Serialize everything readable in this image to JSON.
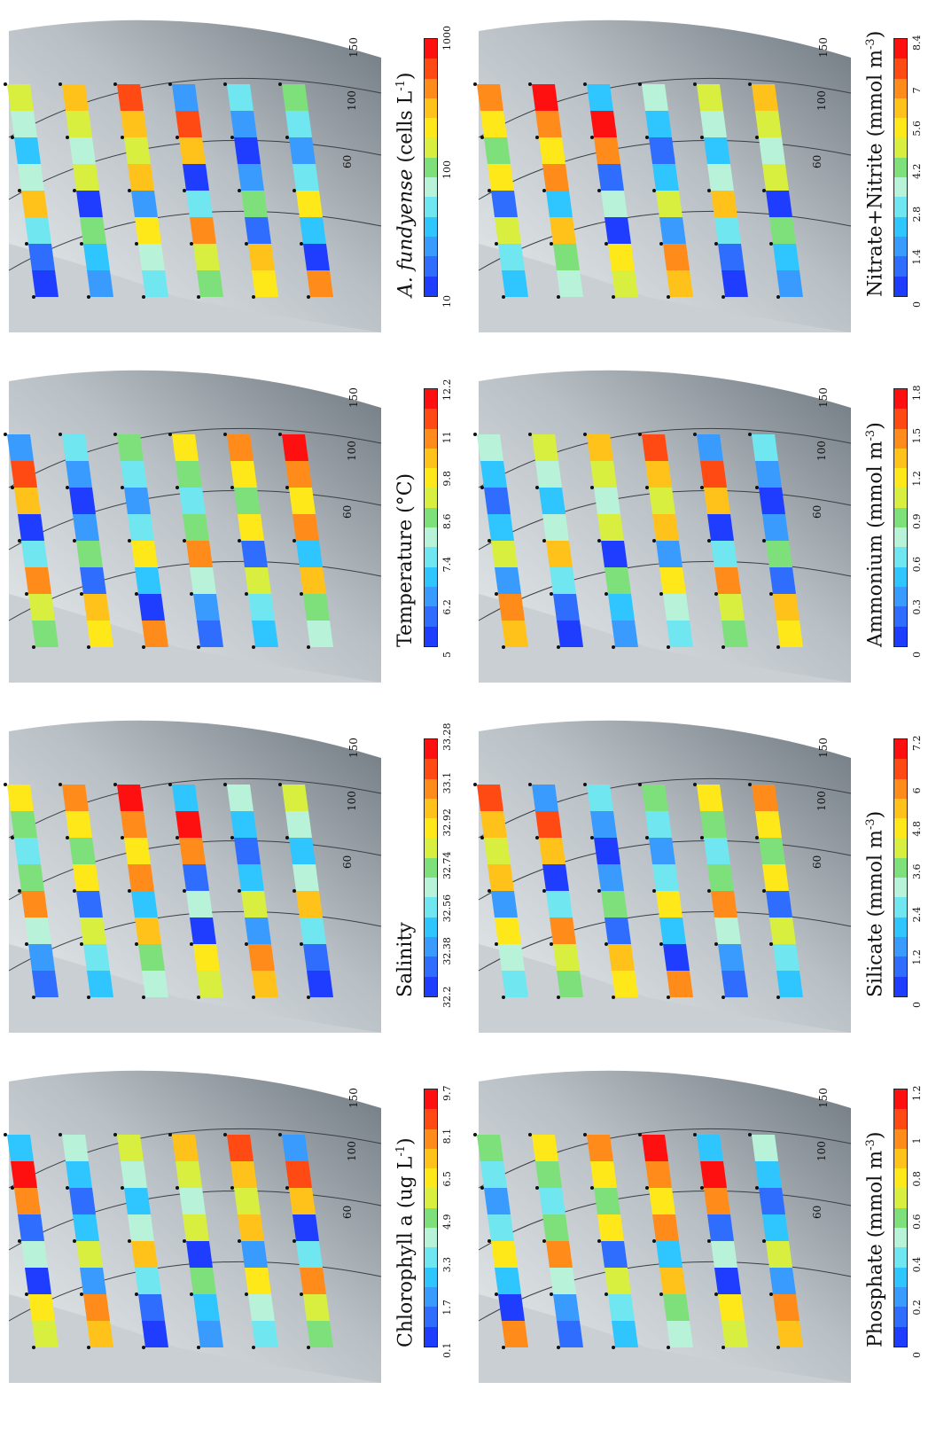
{
  "colorbar": [
    "#1f3dff",
    "#2f6dff",
    "#3a9bff",
    "#2fc5ff",
    "#6fe6f0",
    "#b8f2d8",
    "#7ee07a",
    "#d8ef40",
    "#ffe81a",
    "#ffc21a",
    "#ff8c1a",
    "#ff4a14",
    "#ff1010"
  ],
  "colors": {
    "land": "#c9cfd3",
    "shelf_light": "#e8ecee",
    "deep": "#6f7880",
    "contour": "#3a3f44",
    "station": "#111111"
  },
  "panels": [
    {
      "id": "a-fundyense",
      "title_italic": "A. fundyense",
      "title_rest": " (cells L",
      "title_sup": "-1",
      "title_end": ")",
      "ticks": [
        "10",
        "100",
        "1000"
      ],
      "depths": [
        "60",
        "100",
        "150"
      ]
    },
    {
      "id": "nitrate",
      "title": "Nitrate+Nitrite (mmol m",
      "title_sup": "-3",
      "title_end": ")",
      "ticks": [
        "0",
        "1.4",
        "2.8",
        "4.2",
        "5.6",
        "7",
        "8.4"
      ],
      "depths": [
        "60",
        "100",
        "150"
      ]
    },
    {
      "id": "temperature",
      "title": "Temperature (°C)",
      "ticks": [
        "5",
        "6.2",
        "7.4",
        "8.6",
        "9.8",
        "11",
        "12.2"
      ],
      "depths": [
        "60",
        "100",
        "150"
      ]
    },
    {
      "id": "ammonium",
      "title": "Ammonium (mmol m",
      "title_sup": "-3",
      "title_end": ")",
      "ticks": [
        "0",
        "0.3",
        "0.6",
        "0.9",
        "1.2",
        "1.5",
        "1.8"
      ],
      "depths": [
        "60",
        "100",
        "150"
      ]
    },
    {
      "id": "salinity",
      "title": "Salinity",
      "ticks": [
        "32.2",
        "32.38",
        "32.56",
        "32.74",
        "32.92",
        "33.1",
        "33.28"
      ],
      "depths": [
        "60",
        "100",
        "150"
      ]
    },
    {
      "id": "silicate",
      "title": "Silicate (mmol m",
      "title_sup": "-3",
      "title_end": ")",
      "ticks": [
        "0",
        "1.2",
        "2.4",
        "3.6",
        "4.8",
        "6",
        "7.2"
      ],
      "depths": [
        "60",
        "100",
        "150"
      ]
    },
    {
      "id": "chlorophyll",
      "title": "Chlorophyll a (ug L",
      "title_sup": "-1",
      "title_end": ")",
      "ticks": [
        "0.1",
        "1.7",
        "3.3",
        "4.9",
        "6.5",
        "8.1",
        "9.7"
      ],
      "depths": [
        "60",
        "100",
        "150"
      ]
    },
    {
      "id": "phosphate",
      "title": "Phosphate (mmol m",
      "title_sup": "-3",
      "title_end": ")",
      "ticks": [
        "0",
        "0.2",
        "0.4",
        "0.6",
        "0.8",
        "1",
        "1.2"
      ],
      "depths": [
        "60",
        "100",
        "150"
      ]
    }
  ]
}
